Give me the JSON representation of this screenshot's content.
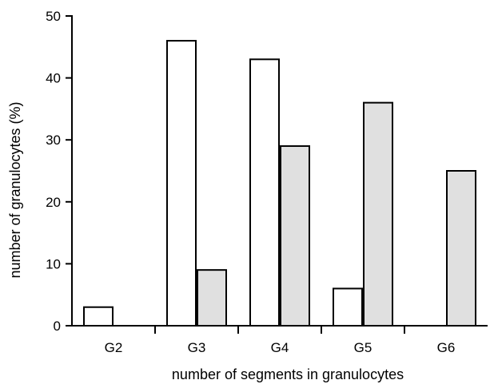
{
  "chart_data": {
    "type": "bar",
    "title": "",
    "xlabel": "number of segments in granulocytes",
    "ylabel": "number of granulocytes (%)",
    "categories": [
      "G2",
      "G3",
      "G4",
      "G5",
      "G6"
    ],
    "series": [
      {
        "values": [
          3,
          46,
          43,
          6,
          0
        ],
        "color": "#ffffff"
      },
      {
        "values": [
          0,
          9,
          29,
          36,
          25
        ],
        "color": "#e0e0e0"
      }
    ],
    "ylim": [
      0,
      50
    ],
    "yticks": [
      0,
      10,
      20,
      30,
      40,
      50
    ],
    "grid": false,
    "legend": "none"
  }
}
